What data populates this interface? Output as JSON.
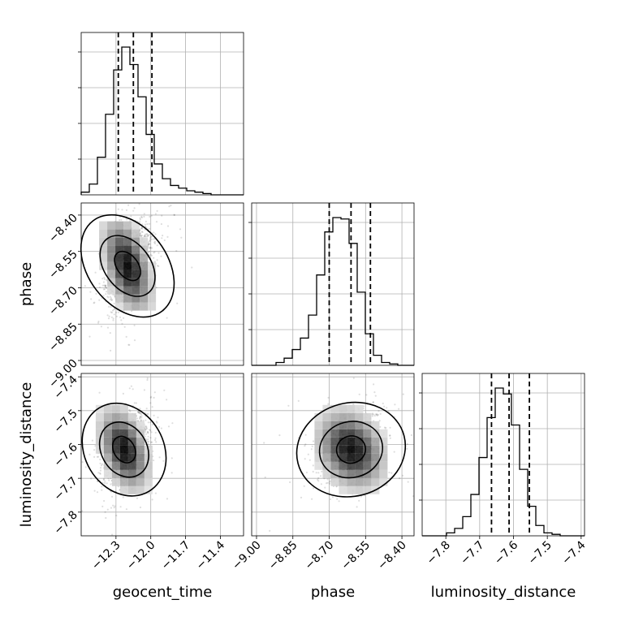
{
  "chart_data": {
    "type": "corner",
    "parameters": [
      "geocent_time",
      "phase",
      "luminosity_distance"
    ],
    "axis_labels": {
      "geocent_time": "geocent_time",
      "phase": "phase",
      "luminosity_distance": "luminosity_distance"
    },
    "ranges": {
      "geocent_time": [
        -12.6,
        -11.2
      ],
      "phase": [
        -9.02,
        -8.35
      ],
      "luminosity_distance": [
        -7.87,
        -7.39
      ]
    },
    "ticks": {
      "geocent_time": {
        "values": [
          -12.3,
          -12.0,
          -11.7,
          -11.4
        ],
        "labels": [
          "−12.3",
          "−12.0",
          "−11.7",
          "−11.4"
        ]
      },
      "phase": {
        "values": [
          -9.0,
          -8.85,
          -8.7,
          -8.55,
          -8.4
        ],
        "labels": [
          "−9.00",
          "−8.85",
          "−8.70",
          "−8.55",
          "−8.40"
        ]
      },
      "luminosity_distance": {
        "values": [
          -7.8,
          -7.7,
          -7.6,
          -7.5,
          -7.4
        ],
        "labels": [
          "−7.8",
          "−7.7",
          "−7.6",
          "−7.5",
          "−7.4"
        ]
      }
    },
    "quantiles": {
      "geocent_time": [
        -12.28,
        -12.15,
        -11.99
      ],
      "phase": [
        -8.7,
        -8.61,
        -8.53
      ],
      "luminosity_distance": [
        -7.665,
        -7.613,
        -7.553
      ]
    },
    "histograms": {
      "geocent_time": [
        2,
        8,
        28,
        60,
        93,
        110,
        97,
        73,
        45,
        23,
        12,
        7,
        5,
        3,
        2,
        1,
        0,
        0,
        0,
        0
      ],
      "phase": [
        0,
        0,
        0,
        2,
        5,
        11,
        19,
        35,
        63,
        93,
        103,
        102,
        85,
        51,
        22,
        7,
        2,
        1,
        0,
        0
      ],
      "luminosity_distance": [
        0,
        0,
        0,
        2,
        5,
        13,
        28,
        53,
        80,
        100,
        96,
        75,
        45,
        20,
        7,
        2,
        1,
        0,
        0,
        0
      ]
    },
    "correlation_peaks": {
      "geocent_time_vs_phase": {
        "x": -12.2,
        "y": -8.61
      },
      "geocent_time_vs_luminosity_distance": {
        "x": -12.23,
        "y": -7.615
      },
      "phase_vs_luminosity_distance": {
        "x": -8.61,
        "y": -7.615
      }
    },
    "grid": true
  }
}
